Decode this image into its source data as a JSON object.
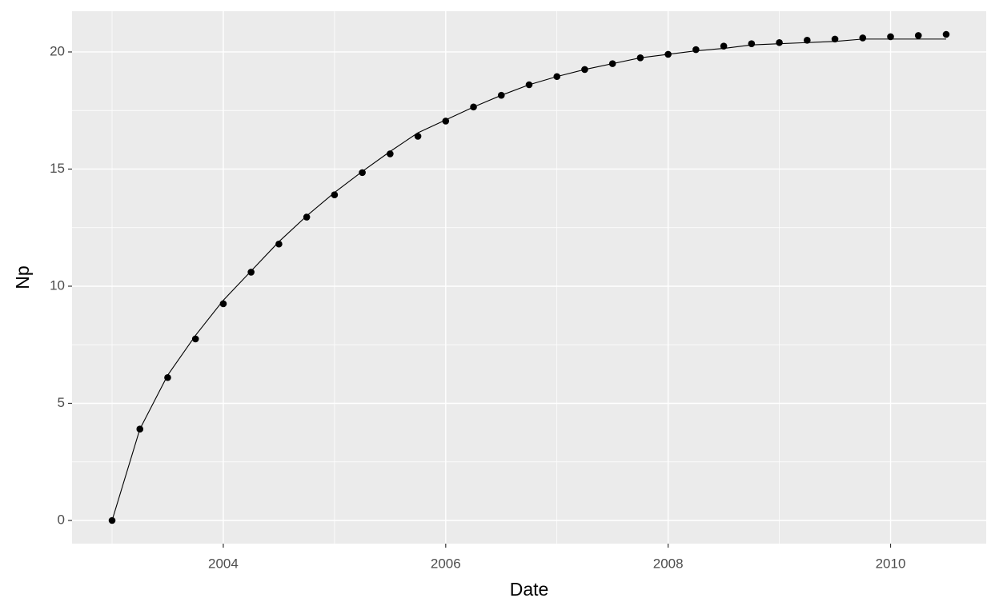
{
  "chart_data": {
    "type": "line",
    "x_label": "Date",
    "y_label": "Np",
    "x": [
      2003,
      2003.25,
      2003.5,
      2003.75,
      2004,
      2004.25,
      2004.5,
      2004.75,
      2005,
      2005.25,
      2005.5,
      2005.75,
      2006,
      2006.25,
      2006.5,
      2006.75,
      2007,
      2007.25,
      2007.5,
      2007.75,
      2008,
      2008.25,
      2008.5,
      2008.75,
      2009,
      2009.25,
      2009.5,
      2009.75,
      2010,
      2010.25,
      2010.5
    ],
    "series": [
      {
        "style": "points",
        "color": "#000000",
        "values": [
          0,
          3.9,
          6.1,
          7.75,
          9.25,
          10.6,
          11.8,
          12.95,
          13.9,
          14.85,
          15.65,
          16.4,
          17.05,
          17.65,
          18.15,
          18.6,
          18.95,
          19.25,
          19.5,
          19.75,
          19.9,
          20.1,
          20.25,
          20.35,
          20.4,
          20.5,
          20.55,
          20.6,
          20.65,
          20.7,
          20.75
        ]
      },
      {
        "style": "line",
        "color": "#000000",
        "values": [
          0,
          3.9,
          6.2,
          7.9,
          9.4,
          10.65,
          11.9,
          13.0,
          14.0,
          14.9,
          15.75,
          16.55,
          17.1,
          17.65,
          18.15,
          18.6,
          18.95,
          19.25,
          19.5,
          19.75,
          19.9,
          20.05,
          20.15,
          20.3,
          20.35,
          20.4,
          20.45,
          20.55,
          20.55,
          20.55,
          20.55
        ]
      }
    ],
    "xlim": [
      2002.64,
      2010.86
    ],
    "ylim": [
      -0.99,
      21.74
    ],
    "xticks": [
      2004,
      2006,
      2008,
      2010
    ],
    "yticks": [
      0,
      5,
      10,
      15,
      20
    ],
    "grid": true,
    "background": "#ebebeb"
  }
}
